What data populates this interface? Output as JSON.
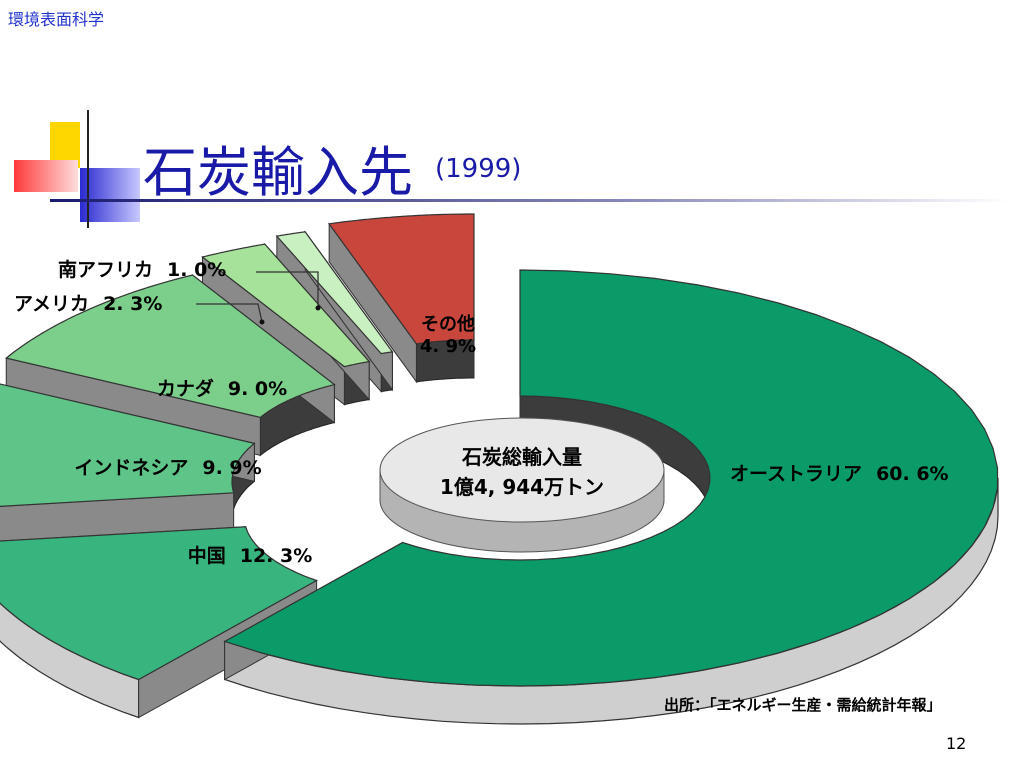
{
  "header": {
    "course": "環境表面科学",
    "title": "石炭輸入先",
    "year": "(1999)"
  },
  "chart_data": {
    "type": "pie",
    "title": "",
    "center_label": {
      "line1": "石炭総輸入量",
      "line2": "1億4, 944万トン"
    },
    "slices": [
      {
        "label": "オーストラリア",
        "value": 60.6,
        "value_text": "60. 6%",
        "color": "#0a9b68"
      },
      {
        "label": "中国",
        "value": 12.3,
        "value_text": "12. 3%",
        "color": "#38b47e"
      },
      {
        "label": "インドネシア",
        "value": 9.9,
        "value_text": "9. 9%",
        "color": "#5ec487"
      },
      {
        "label": "カナダ",
        "value": 9.0,
        "value_text": "9. 0%",
        "color": "#7ccf8b"
      },
      {
        "label": "アメリカ",
        "value": 2.3,
        "value_text": "2. 3%",
        "color": "#a6e29a"
      },
      {
        "label": "南アフリカ",
        "value": 1.0,
        "value_text": "1. 0%",
        "color": "#c8f0c0"
      },
      {
        "label": "その他",
        "value": 4.9,
        "value_text": "4. 9%",
        "color": "#c8463c"
      }
    ]
  },
  "footer": {
    "source": "出所：「エネルギー生産・需給統計年報」",
    "page": "12"
  }
}
